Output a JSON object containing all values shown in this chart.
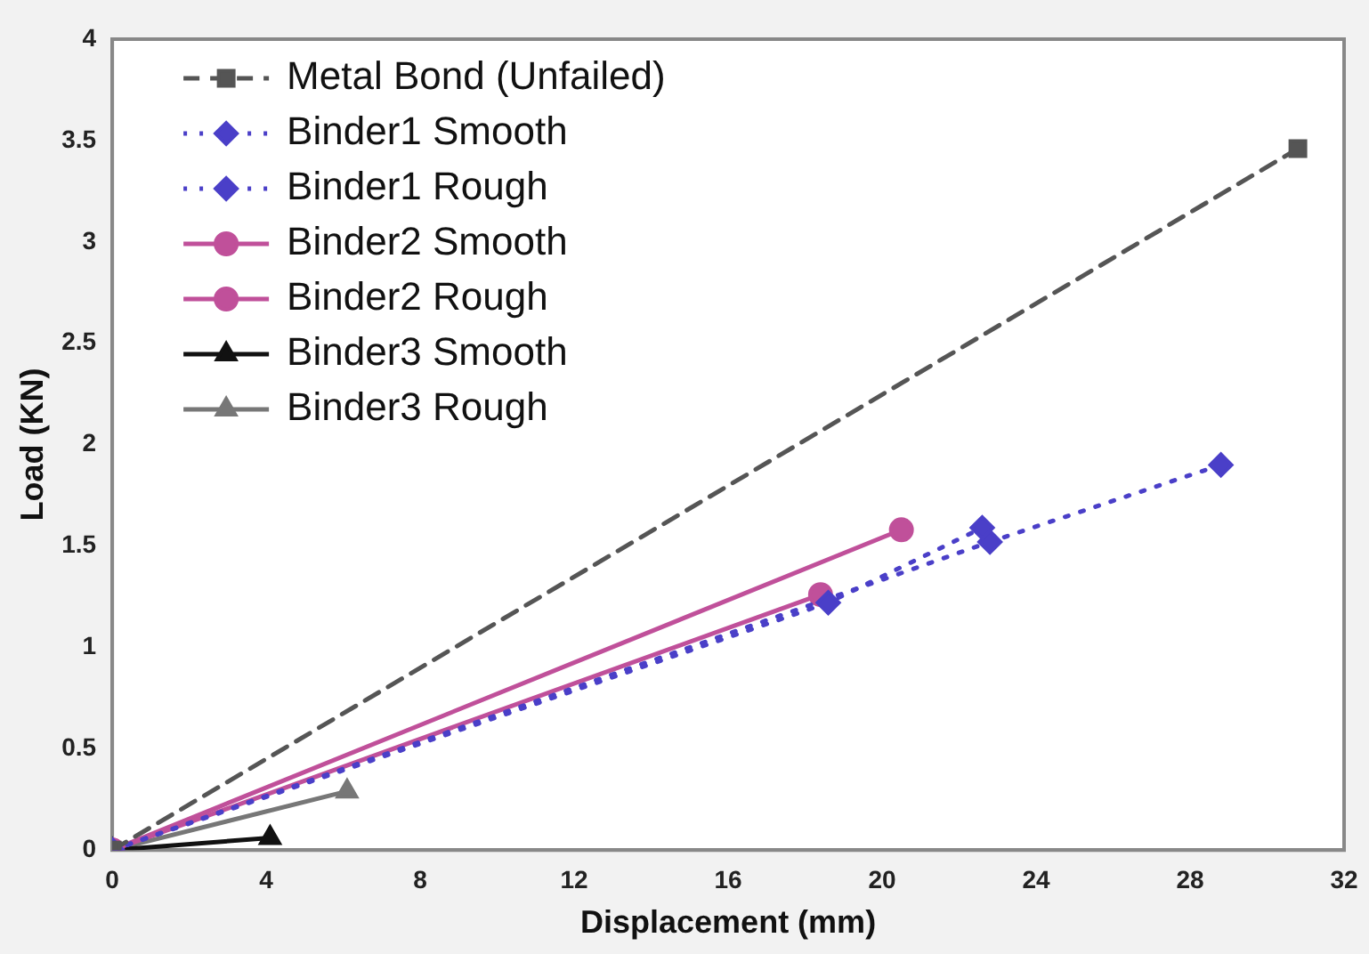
{
  "chart_data": {
    "type": "line",
    "xlabel": "Displacement (mm)",
    "ylabel": "Load (KN)",
    "xlim": [
      0,
      32
    ],
    "xticks": [
      0,
      4,
      8,
      12,
      16,
      20,
      24,
      28,
      32
    ],
    "ylim": [
      0,
      4
    ],
    "yticks": [
      0,
      0.5,
      1,
      1.5,
      2,
      2.5,
      3,
      3.5,
      4
    ],
    "grid": false,
    "legend": "top left",
    "series": [
      {
        "name": "Metal Bond (Unfailed)",
        "color": "#555555",
        "line_style": "dashed",
        "marker": "square",
        "x": [
          0,
          30.8
        ],
        "values": [
          0,
          3.46
        ]
      },
      {
        "name": "Binder1 Smooth",
        "color": "#4a3fc8",
        "line_style": "dotted",
        "marker": "diamond",
        "x": [
          0,
          18.6,
          22.6
        ],
        "values": [
          0,
          1.22,
          1.59
        ]
      },
      {
        "name": "Binder1 Rough",
        "color": "#4a3fc8",
        "line_style": "dotted",
        "marker": "diamond",
        "x": [
          0,
          22.8,
          28.8
        ],
        "values": [
          0,
          1.52,
          1.9
        ]
      },
      {
        "name": "Binder2 Smooth",
        "color": "#c0509a",
        "line_style": "solid",
        "marker": "circle",
        "x": [
          0,
          18.4
        ],
        "values": [
          0,
          1.26
        ]
      },
      {
        "name": "Binder2 Rough",
        "color": "#c0509a",
        "line_style": "solid",
        "marker": "circle",
        "x": [
          0,
          20.5
        ],
        "values": [
          0,
          1.58
        ]
      },
      {
        "name": "Binder3 Smooth",
        "color": "#111111",
        "line_style": "solid",
        "marker": "triangle",
        "x": [
          0,
          4.1
        ],
        "values": [
          0,
          0.06
        ]
      },
      {
        "name": "Binder3 Rough",
        "color": "#777777",
        "line_style": "solid",
        "marker": "triangle",
        "x": [
          0,
          6.1
        ],
        "values": [
          0,
          0.29
        ]
      }
    ]
  }
}
